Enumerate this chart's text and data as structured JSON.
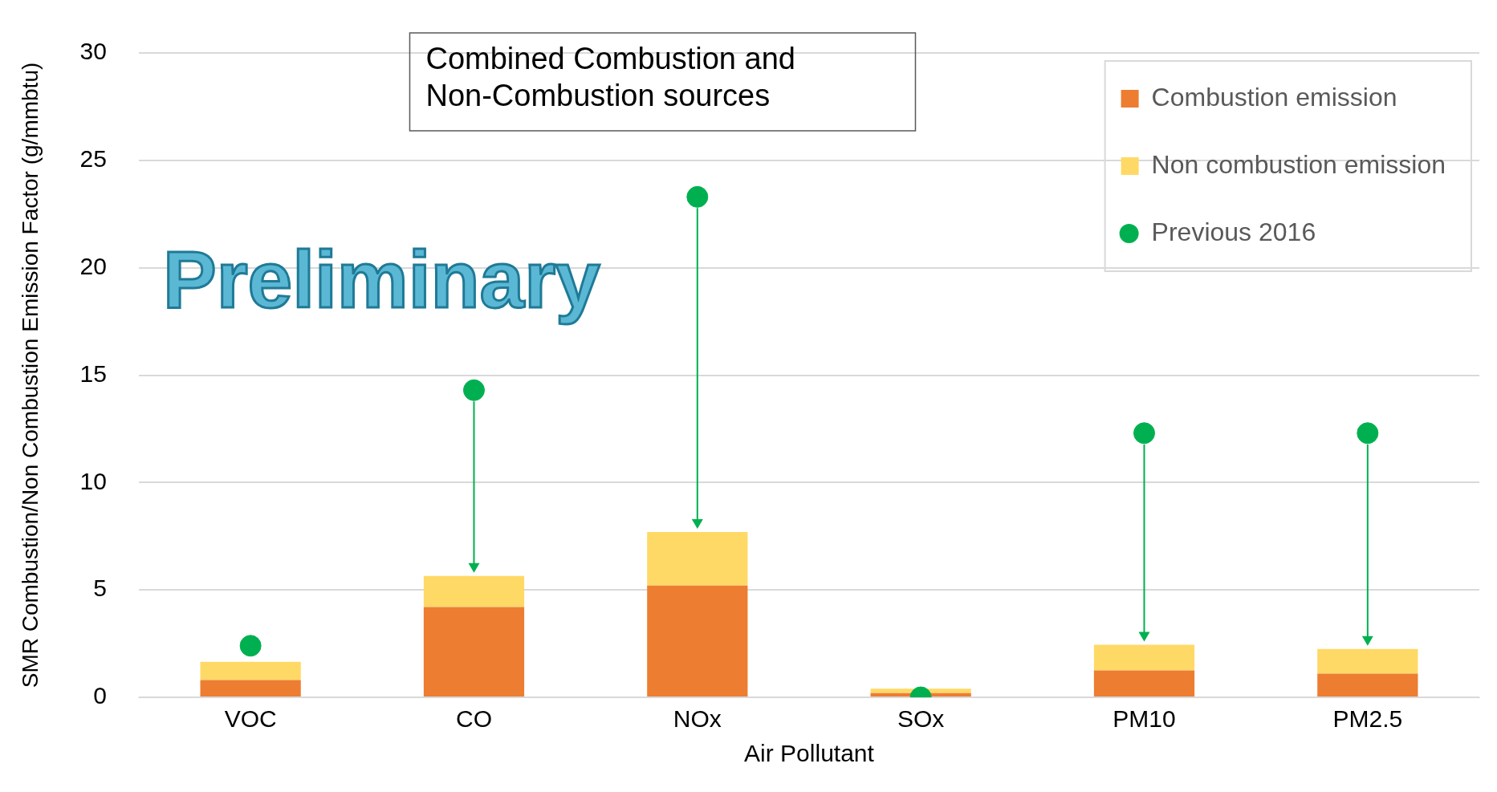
{
  "chart_data": {
    "type": "bar",
    "title": "Combined Combustion and Non-Combustion sources",
    "xlabel": "Air Pollutant",
    "ylabel": "SMR Combustion/Non Combustion Emission Factor (g/mmbtu)",
    "categories": [
      "VOC",
      "CO",
      "NOx",
      "SOx",
      "PM10",
      "PM2.5"
    ],
    "stacked": true,
    "series": [
      {
        "name": "Combustion emission",
        "color": "#ed7d31",
        "values": [
          0.8,
          4.2,
          5.2,
          0.2,
          1.25,
          1.1
        ]
      },
      {
        "name": "Non combustion emission",
        "color": "#ffd966",
        "values": [
          0.85,
          1.45,
          2.5,
          0.2,
          1.2,
          1.15
        ]
      },
      {
        "name": "Previous 2016",
        "type": "scatter",
        "color": "#00b050",
        "x": [
          "VOC",
          "CO",
          "NOx",
          "SOx",
          "PM10",
          "PM2.5"
        ],
        "values": [
          2.4,
          14.3,
          23.3,
          0,
          12.3,
          12.3
        ]
      }
    ],
    "ylim": [
      0,
      30
    ],
    "yticks": [
      0,
      5,
      10,
      15,
      20,
      25,
      30
    ],
    "grid": "y",
    "legend": "top right",
    "marker": "circle",
    "annotations": [
      "Preliminary"
    ]
  }
}
